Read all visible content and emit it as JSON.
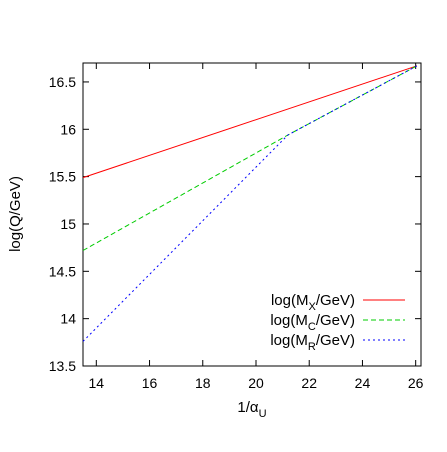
{
  "chart_data": {
    "type": "line",
    "xlabel": "1/α",
    "xlabel_sub": "U",
    "ylabel": "log(Q/GeV)",
    "xlim": [
      13.5,
      26.2
    ],
    "ylim": [
      13.5,
      16.7
    ],
    "x_ticks": [
      14,
      16,
      18,
      20,
      22,
      24,
      26
    ],
    "x_tick_labels": [
      "14",
      "16",
      "18",
      "20",
      "22",
      "24",
      "26"
    ],
    "y_ticks": [
      13.5,
      14,
      14.5,
      15,
      15.5,
      16,
      16.5
    ],
    "y_tick_labels": [
      "13.5",
      "14",
      "14.5",
      "15",
      "15.5",
      "16",
      "16.5"
    ],
    "grid": false,
    "legend_position": "bottom-right",
    "series": [
      {
        "name_main": "log(M",
        "name_sub": "X",
        "name_tail": "/GeV)",
        "color": "#ff0000",
        "dash": "solid",
        "x": [
          13.5,
          26.05
        ],
        "y": [
          15.49,
          16.67
        ]
      },
      {
        "name_main": "log(M",
        "name_sub": "C",
        "name_tail": "/GeV)",
        "color": "#00cc00",
        "dash": "dashed",
        "x": [
          13.5,
          21.2,
          26.05
        ],
        "y": [
          14.72,
          15.94,
          16.67
        ]
      },
      {
        "name_main": "log(M",
        "name_sub": "R",
        "name_tail": "/GeV)",
        "color": "#0000ff",
        "dash": "dotted",
        "x": [
          13.5,
          21.2,
          26.05
        ],
        "y": [
          13.76,
          15.94,
          16.67
        ]
      }
    ]
  }
}
